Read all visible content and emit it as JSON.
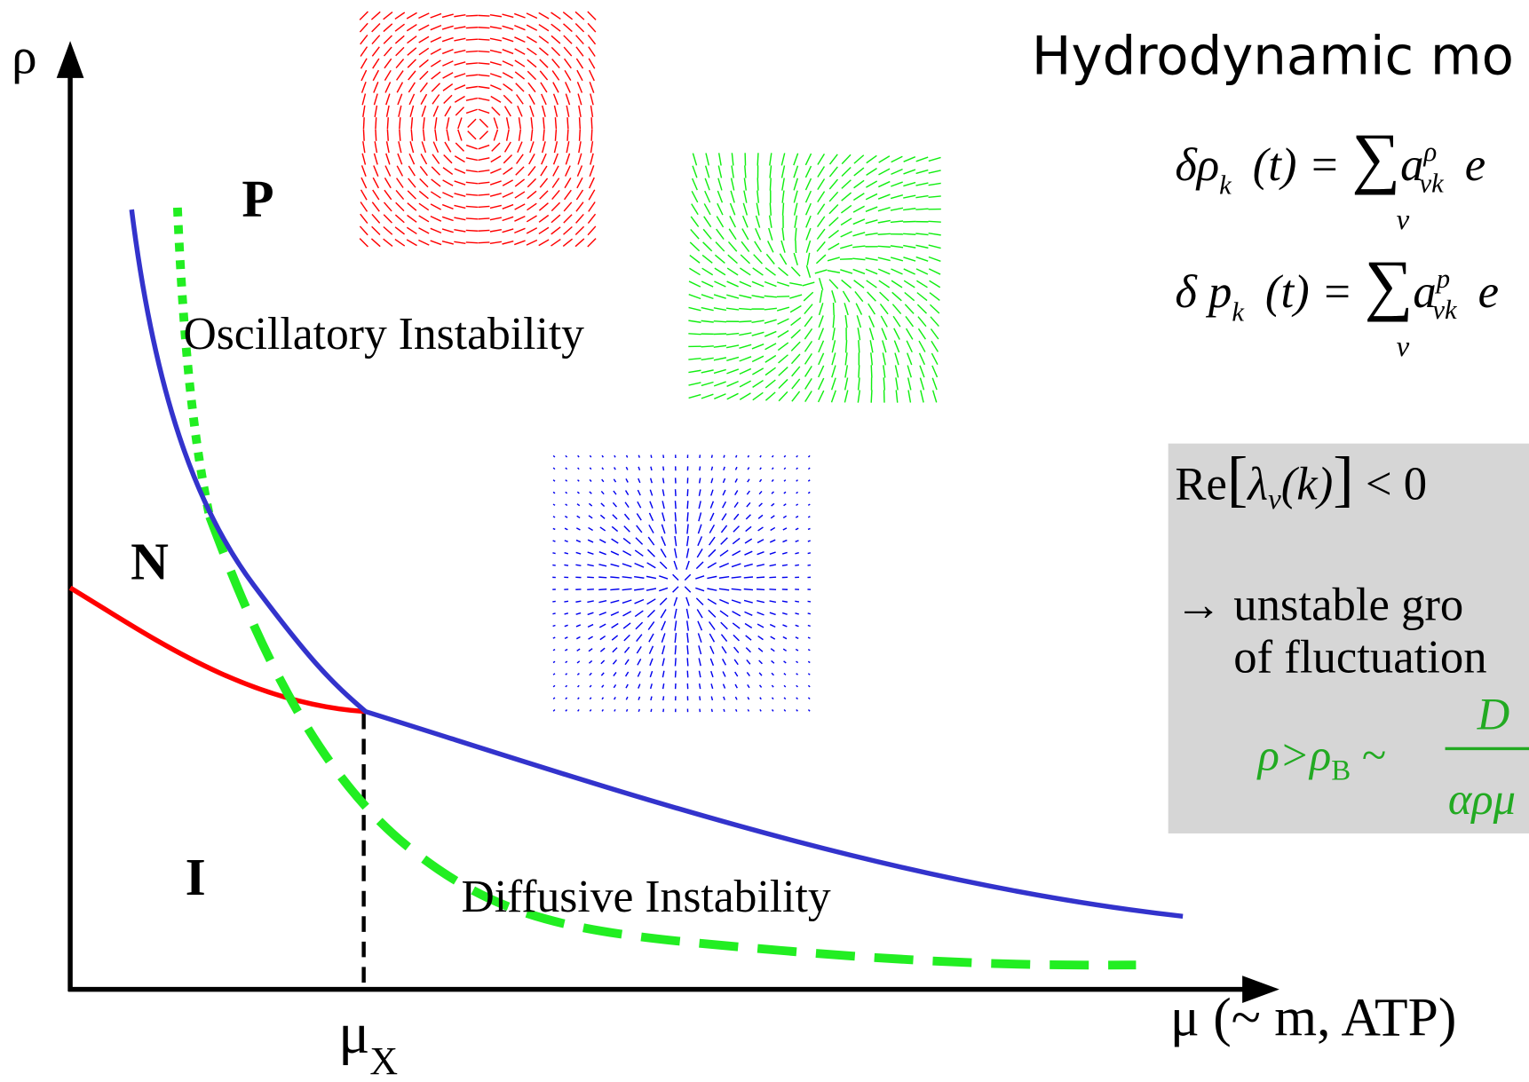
{
  "title": "Hydrodynamic mo",
  "axes": {
    "y_label": "ρ",
    "x_label": "μ (~ m, ATP)",
    "x_marker": "μ",
    "x_marker_sub": "X"
  },
  "regions": {
    "p": "P",
    "n": "N",
    "i": "I"
  },
  "annotations": [
    "Oscillatory Instability",
    "Diffusive Instability"
  ],
  "equations": [
    {
      "lhs": "δρ",
      "lhs_sub": "k⃗",
      "mid": "(t) = ",
      "sum": "∑",
      "sum_sub": "ν",
      "coef": "a",
      "coef_sup": "ρ",
      "coef_sub": "νk⃗",
      "tail": "e"
    },
    {
      "lhs": "δ p",
      "lhs_sub": "k⃗",
      "mid": "(t) = ",
      "sum": "∑",
      "sum_sub": "ν",
      "coef": "a",
      "coef_sup": "p",
      "coef_sub": "νk⃗",
      "tail": "e"
    }
  ],
  "box": {
    "cond_re": "Re",
    "cond_open": "[",
    "cond_lambda": "λ",
    "cond_sub": "ν",
    "cond_arg": "(k)",
    "cond_close": "]",
    "cond_rel": " < 0",
    "line1": "→  unstable gro",
    "line2": "of fluctuation",
    "crit_lhs": "ρ>ρ",
    "crit_sub": "B",
    "crit_rel": " ~",
    "crit_num": "D",
    "crit_den": "αρμ"
  }
}
